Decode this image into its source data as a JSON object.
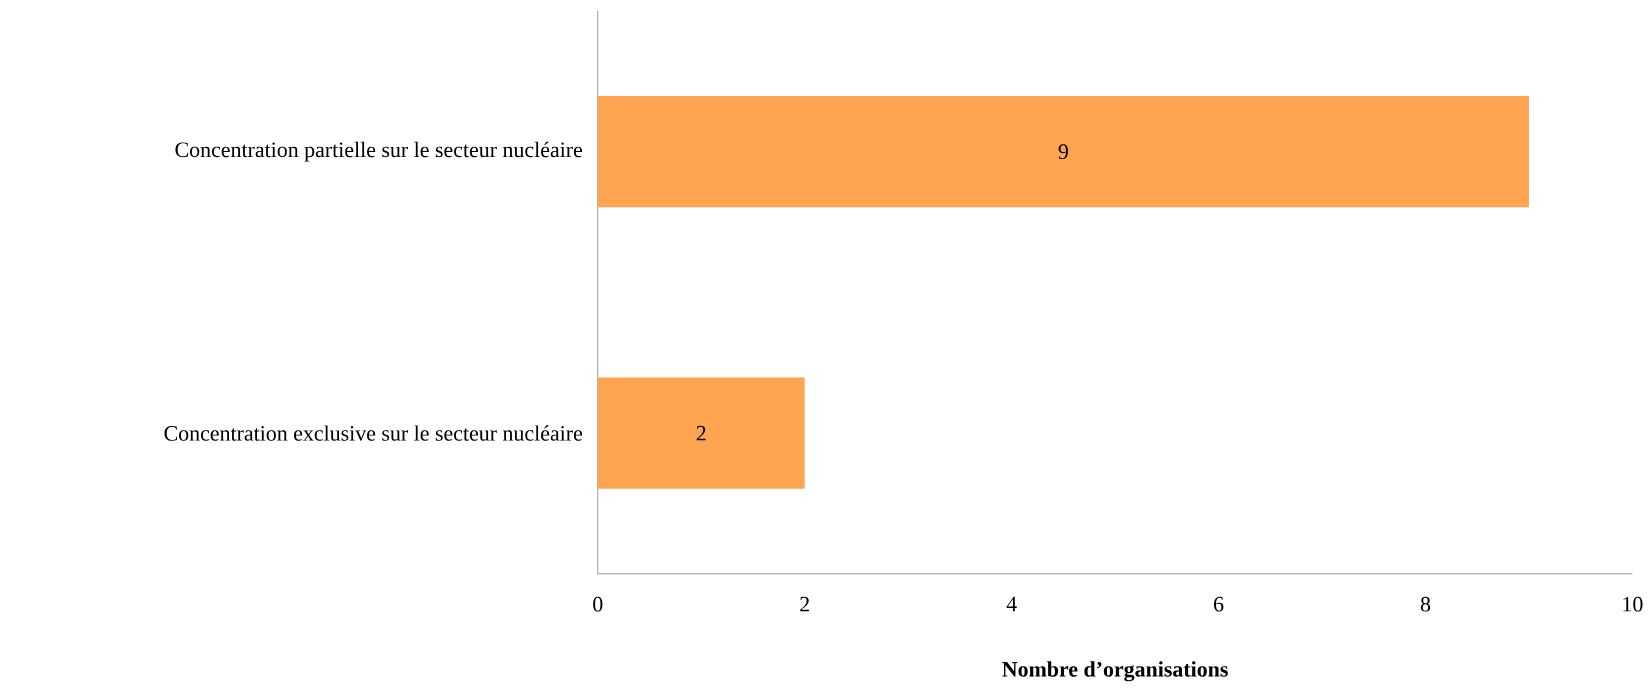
{
  "chart_data": {
    "type": "bar",
    "orientation": "horizontal",
    "categories": [
      "Concentration partielle sur le secteur nucléaire",
      "Concentration exclusive sur le secteur nucléaire"
    ],
    "values": [
      9,
      2
    ],
    "color": "#ffa552",
    "xlim": [
      0,
      10
    ],
    "xticks": [
      0,
      2,
      4,
      6,
      8,
      10
    ],
    "xlabel": "Nombre d’organisations",
    "data_labels": true
  }
}
